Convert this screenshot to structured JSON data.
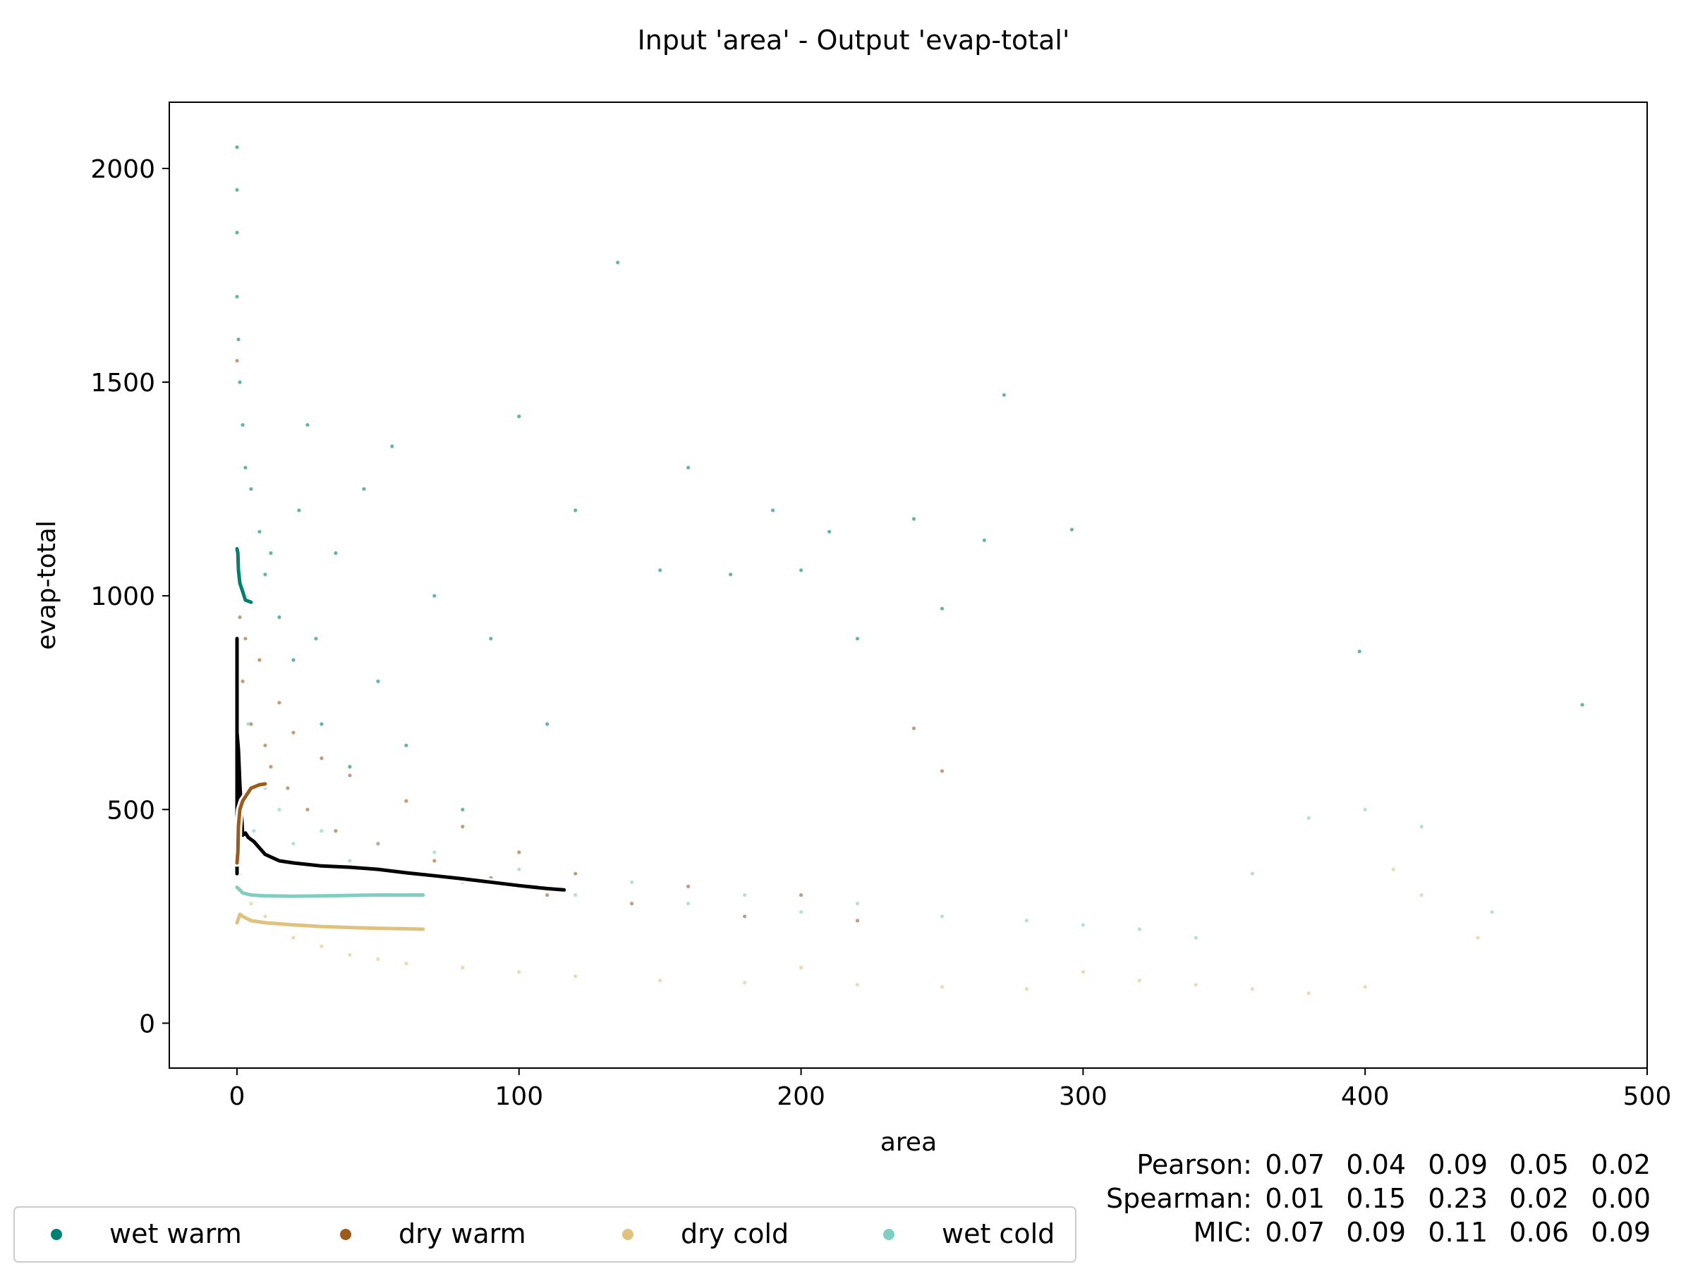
{
  "colors": {
    "background": "#ffffff",
    "axis": "#000000",
    "overall": "#000000",
    "wet_warm": "#00806e",
    "dry_warm": "#9c5a1d",
    "dry_cold": "#dfc27d",
    "wet_cold": "#80cdc1"
  },
  "chart_data": {
    "type": "scatter",
    "title": "Input 'area' - Output 'evap-total'",
    "xlabel": "area",
    "ylabel": "evap-total",
    "xlim": [
      -24,
      500
    ],
    "ylim": [
      -105,
      2155
    ],
    "xticks": [
      0,
      100,
      200,
      300,
      400,
      500
    ],
    "yticks": [
      0,
      500,
      1000,
      1500,
      2000
    ],
    "grid": false,
    "legend": {
      "placement": "bottom-left",
      "entries": [
        {
          "key": "wet_warm",
          "label": "wet warm"
        },
        {
          "key": "dry_warm",
          "label": "dry warm"
        },
        {
          "key": "dry_cold",
          "label": "dry cold"
        },
        {
          "key": "wet_cold",
          "label": "wet cold"
        }
      ]
    },
    "stats": {
      "placement": "bottom-right",
      "rows": [
        {
          "label": "Pearson:",
          "overall": "0.07",
          "wet_warm": "0.04",
          "dry_warm": "0.09",
          "dry_cold": "0.05",
          "wet_cold": "0.02"
        },
        {
          "label": "Spearman:",
          "overall": "0.01",
          "wet_warm": "0.15",
          "dry_warm": "0.23",
          "dry_cold": "0.02",
          "wet_cold": "0.00"
        },
        {
          "label": "MIC:",
          "overall": "0.07",
          "wet_warm": "0.09",
          "dry_warm": "0.11",
          "dry_cold": "0.06",
          "wet_cold": "0.09"
        }
      ]
    },
    "series": [
      {
        "key": "overall",
        "kind": "line",
        "x": [
          0,
          0,
          0,
          0.5,
          1,
          2,
          3,
          4,
          6,
          8,
          10,
          15,
          20,
          30,
          40,
          50,
          60,
          70,
          80,
          90,
          100,
          110,
          116
        ],
        "y": [
          350,
          900,
          680,
          640,
          560,
          440,
          445,
          435,
          425,
          410,
          395,
          380,
          375,
          368,
          365,
          360,
          352,
          345,
          338,
          330,
          322,
          315,
          312
        ]
      },
      {
        "key": "wet_warm",
        "kind": "line",
        "x": [
          0,
          0.3,
          0.5,
          1,
          2,
          3,
          5
        ],
        "y": [
          1110,
          1100,
          1060,
          1030,
          1010,
          990,
          985
        ]
      },
      {
        "key": "dry_warm",
        "kind": "line",
        "x": [
          0,
          0.3,
          0.5,
          1,
          2,
          3,
          5,
          8,
          10
        ],
        "y": [
          375,
          400,
          460,
          500,
          520,
          530,
          550,
          558,
          560
        ]
      },
      {
        "key": "wet_cold",
        "kind": "line",
        "x": [
          0,
          1,
          2,
          5,
          10,
          20,
          30,
          40,
          50,
          60,
          66
        ],
        "y": [
          318,
          312,
          305,
          300,
          298,
          297,
          298,
          299,
          300,
          300,
          300
        ]
      },
      {
        "key": "dry_cold",
        "kind": "line",
        "x": [
          0,
          1,
          2,
          5,
          10,
          20,
          30,
          40,
          50,
          60,
          66
        ],
        "y": [
          235,
          255,
          250,
          240,
          235,
          230,
          226,
          224,
          222,
          221,
          220
        ]
      },
      {
        "key": "wet_warm",
        "kind": "scatter",
        "x": [
          0,
          0,
          0,
          0,
          0.5,
          1,
          2,
          3,
          5,
          8,
          10,
          12,
          15,
          20,
          22,
          25,
          28,
          30,
          35,
          40,
          45,
          50,
          55,
          60,
          70,
          80,
          90,
          100,
          110,
          120,
          135,
          150,
          160,
          175,
          190,
          200,
          210,
          220,
          240,
          250,
          265,
          272,
          296,
          398,
          477
        ],
        "y": [
          2050,
          1950,
          1850,
          1700,
          1600,
          1500,
          1400,
          1300,
          1250,
          1150,
          1050,
          1100,
          950,
          850,
          1200,
          1400,
          900,
          700,
          1100,
          600,
          1250,
          800,
          1350,
          650,
          1000,
          500,
          900,
          1420,
          700,
          1200,
          1780,
          1060,
          1300,
          1050,
          1200,
          1060,
          1150,
          900,
          1180,
          970,
          1130,
          1470,
          1155,
          870,
          745
        ]
      },
      {
        "key": "dry_warm",
        "kind": "scatter",
        "x": [
          0,
          0,
          1,
          2,
          3,
          5,
          8,
          10,
          12,
          15,
          18,
          20,
          25,
          30,
          35,
          40,
          50,
          60,
          70,
          80,
          90,
          100,
          110,
          120,
          140,
          160,
          180,
          200,
          220,
          240,
          250
        ],
        "y": [
          1550,
          1100,
          950,
          800,
          900,
          700,
          850,
          650,
          600,
          750,
          550,
          680,
          500,
          620,
          450,
          580,
          420,
          520,
          380,
          460,
          340,
          400,
          300,
          350,
          280,
          320,
          250,
          300,
          240,
          690,
          590
        ]
      },
      {
        "key": "dry_cold",
        "kind": "scatter",
        "x": [
          0,
          1,
          3,
          5,
          10,
          15,
          20,
          30,
          40,
          50,
          60,
          80,
          100,
          120,
          150,
          180,
          200,
          220,
          250,
          280,
          300,
          320,
          340,
          360,
          380,
          400,
          410,
          420,
          440
        ],
        "y": [
          400,
          350,
          300,
          280,
          250,
          230,
          200,
          180,
          160,
          150,
          140,
          130,
          120,
          110,
          100,
          95,
          130,
          90,
          85,
          80,
          120,
          100,
          90,
          80,
          70,
          85,
          360,
          300,
          200
        ]
      },
      {
        "key": "wet_cold",
        "kind": "scatter",
        "x": [
          0,
          0,
          1,
          2,
          4,
          6,
          10,
          15,
          20,
          30,
          40,
          50,
          60,
          70,
          80,
          100,
          120,
          140,
          160,
          180,
          200,
          220,
          250,
          280,
          300,
          320,
          340,
          360,
          380,
          400,
          420,
          445
        ],
        "y": [
          900,
          600,
          650,
          500,
          700,
          450,
          550,
          500,
          420,
          450,
          380,
          420,
          350,
          400,
          330,
          360,
          300,
          330,
          280,
          300,
          260,
          280,
          250,
          240,
          230,
          220,
          200,
          350,
          480,
          500,
          460,
          260
        ]
      }
    ]
  }
}
